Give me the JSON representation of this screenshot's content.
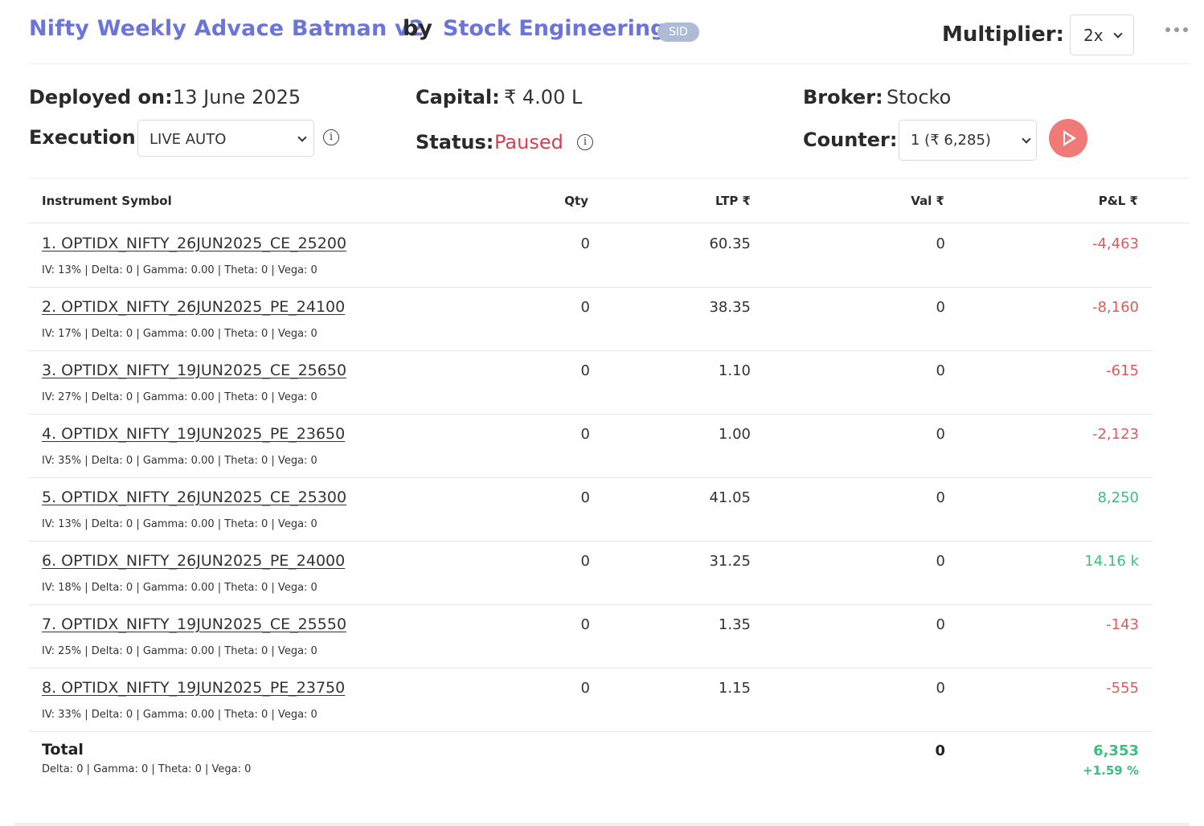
{
  "header": {
    "strategy_name": "Nifty Weekly Advace Batman v2",
    "by_label": "by",
    "author": "Stock Engineering",
    "badge": "SID",
    "multiplier_label": "Multiplier:",
    "multiplier_value": "2x"
  },
  "info": {
    "deployed_label": "Deployed on:",
    "deployed_value": "13 June 2025",
    "execution_label": "Execution:",
    "execution_value": "LIVE AUTO",
    "capital_label": "Capital:",
    "capital_value": "₹ 4.00 L",
    "status_label": "Status:",
    "status_value": "Paused",
    "broker_label": "Broker:",
    "broker_value": "Stocko",
    "counter_label": "Counter:",
    "counter_value": "1 (₹ 6,285)"
  },
  "table": {
    "headers": {
      "symbol": "Instrument Symbol",
      "qty": "Qty",
      "ltp": "LTP ₹",
      "val": "Val ₹",
      "pnl": "P&L ₹"
    },
    "rows": [
      {
        "symbol": "1. OPTIDX_NIFTY_26JUN2025_CE_25200",
        "greeks": "IV: 13% | Delta: 0 | Gamma: 0.00 | Theta: 0 | Vega: 0",
        "qty": "0",
        "ltp": "60.35",
        "val": "0",
        "pnl": "-4,463"
      },
      {
        "symbol": "2. OPTIDX_NIFTY_26JUN2025_PE_24100",
        "greeks": "IV: 17% | Delta: 0 | Gamma: 0.00 | Theta: 0 | Vega: 0",
        "qty": "0",
        "ltp": "38.35",
        "val": "0",
        "pnl": "-8,160"
      },
      {
        "symbol": "3. OPTIDX_NIFTY_19JUN2025_CE_25650",
        "greeks": "IV: 27% | Delta: 0 | Gamma: 0.00 | Theta: 0 | Vega: 0",
        "qty": "0",
        "ltp": "1.10",
        "val": "0",
        "pnl": "-615"
      },
      {
        "symbol": "4. OPTIDX_NIFTY_19JUN2025_PE_23650",
        "greeks": "IV: 35% | Delta: 0 | Gamma: 0.00 | Theta: 0 | Vega: 0",
        "qty": "0",
        "ltp": "1.00",
        "val": "0",
        "pnl": "-2,123"
      },
      {
        "symbol": "5. OPTIDX_NIFTY_26JUN2025_CE_25300",
        "greeks": "IV: 13% | Delta: 0 | Gamma: 0.00 | Theta: 0 | Vega: 0",
        "qty": "0",
        "ltp": "41.05",
        "val": "0",
        "pnl": "8,250"
      },
      {
        "symbol": "6. OPTIDX_NIFTY_26JUN2025_PE_24000",
        "greeks": "IV: 18% | Delta: 0 | Gamma: 0.00 | Theta: 0 | Vega: 0",
        "qty": "0",
        "ltp": "31.25",
        "val": "0",
        "pnl": "14.16 k"
      },
      {
        "symbol": "7. OPTIDX_NIFTY_19JUN2025_CE_25550",
        "greeks": "IV: 25% | Delta: 0 | Gamma: 0.00 | Theta: 0 | Vega: 0",
        "qty": "0",
        "ltp": "1.35",
        "val": "0",
        "pnl": "-143"
      },
      {
        "symbol": "8. OPTIDX_NIFTY_19JUN2025_PE_23750",
        "greeks": "IV: 33% | Delta: 0 | Gamma: 0.00 | Theta: 0 | Vega: 0",
        "qty": "0",
        "ltp": "1.15",
        "val": "0",
        "pnl": "-555"
      }
    ],
    "total": {
      "label": "Total",
      "greeks": "Delta: 0 | Gamma: 0  | Theta: 0 | Vega: 0",
      "val": "0",
      "pnl": "6,353",
      "pnl_pct": "+1.59 %"
    }
  },
  "colors": {
    "accent": "#6b74d9",
    "negative": "#e05a5a",
    "positive": "#3cbf7f",
    "paused": "#d9404e",
    "play_button": "#f07a78"
  },
  "icons": {
    "more": "more-horizontal-icon",
    "info": "info-icon",
    "play": "play-icon",
    "dropdown": "chevron-down-icon"
  }
}
